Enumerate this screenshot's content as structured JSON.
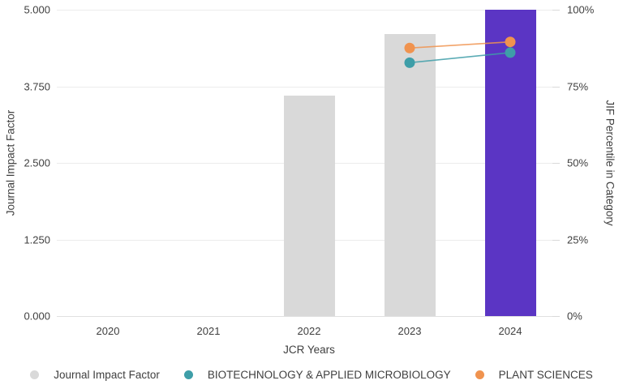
{
  "chart_data": {
    "type": "bar",
    "title": "",
    "categories": [
      "2020",
      "2021",
      "2022",
      "2023",
      "2024"
    ],
    "bar_series": {
      "name": "Journal Impact Factor",
      "values": [
        null,
        null,
        3.6,
        4.6,
        5.0
      ],
      "color": "#d9d9d9",
      "bar_colors": [
        "#d9d9d9",
        "#d9d9d9",
        "#d9d9d9",
        "#d9d9d9",
        "#5b35c4"
      ]
    },
    "line_series": [
      {
        "name": "BIOTECHNOLOGY & APPLIED MICROBIOLOGY",
        "color": "#3e9ea8",
        "values": [
          null,
          null,
          null,
          82.7,
          86.0
        ]
      },
      {
        "name": "PLANT SCIENCES",
        "color": "#f0934f",
        "values": [
          null,
          null,
          null,
          87.5,
          89.5
        ]
      }
    ],
    "y_left": {
      "label": "Journal Impact Factor",
      "min": 0,
      "max": 5,
      "ticks": [
        "5.000",
        "3.750",
        "2.500",
        "1.250",
        "0.000"
      ]
    },
    "y_right": {
      "label": "JIF Percentile in Category",
      "min": 0,
      "max": 100,
      "ticks": [
        "100%",
        "75%",
        "50%",
        "25%",
        "0%"
      ]
    },
    "x": {
      "label": "JCR Years"
    },
    "grid": true,
    "legend_position": "bottom"
  }
}
